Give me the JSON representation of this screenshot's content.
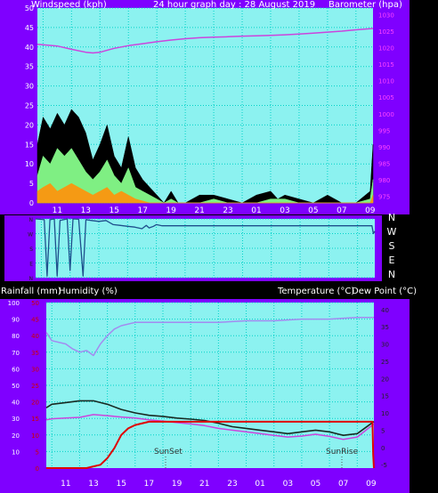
{
  "colors": {
    "frame": "#7f00ff",
    "plot_bg": "#8cf2f0",
    "grid": "#00d2c8",
    "gust": "#000000",
    "speed": "#7fef83",
    "avg": "#f59a14",
    "barometer": "#cc44dd",
    "direction": "#1e4f8c",
    "humidity": "#a38bf0",
    "temperature": "#182a22",
    "dewpoint": "#cc44dd",
    "rainfall": "#e00000",
    "axis_text": "#ffffff",
    "right_axis_text": "#ff44ff",
    "rain_axis_text": "#cc0000"
  },
  "header": {
    "windspeed_label": "Windspeed (kph)",
    "title": "24 hour graph day : 28 August 2019",
    "barometer_label": "Barometer (hpa)"
  },
  "lower_header": {
    "rainfall_label": "Rainfall (mm)",
    "humidity_label": "Humidity (%)",
    "temperature_label": "Temperature (°C)",
    "dewpoint_label": "Dew Point (°C)"
  },
  "compass": [
    "N",
    "W",
    "S",
    "E",
    "N"
  ],
  "time_ticks": [
    "11",
    "13",
    "15",
    "17",
    "19",
    "21",
    "23",
    "01",
    "03",
    "05",
    "07",
    "09"
  ],
  "annotations": {
    "sunset": "SunSet",
    "sunrise": "SunRise"
  },
  "chart_data": [
    {
      "type": "line",
      "name": "wind_barometer",
      "y_left": {
        "label": "Windspeed (kph)",
        "ticks": [
          0,
          5,
          10,
          15,
          20,
          25,
          30,
          35,
          40,
          45,
          50
        ],
        "lim": [
          0,
          50
        ]
      },
      "y_right": {
        "label": "Barometer (hpa)",
        "ticks": [
          975,
          980,
          985,
          990,
          995,
          1000,
          1005,
          1010,
          1015,
          1020,
          1025,
          1030
        ],
        "lim": [
          973,
          1032
        ]
      },
      "series": [
        {
          "name": "gust",
          "points": [
            [
              9.6,
              15
            ],
            [
              10,
              22
            ],
            [
              10.5,
              19
            ],
            [
              11,
              23
            ],
            [
              11.5,
              20
            ],
            [
              12,
              24
            ],
            [
              12.5,
              22
            ],
            [
              13,
              18
            ],
            [
              13.5,
              11
            ],
            [
              14,
              15
            ],
            [
              14.5,
              20
            ],
            [
              15,
              12
            ],
            [
              15.5,
              9
            ],
            [
              16,
              17
            ],
            [
              16.5,
              9
            ],
            [
              17,
              6
            ],
            [
              17.5,
              4
            ],
            [
              18,
              2
            ],
            [
              18.5,
              0
            ],
            [
              19,
              3
            ],
            [
              19.5,
              0
            ],
            [
              20,
              0
            ],
            [
              21,
              2
            ],
            [
              22,
              2
            ],
            [
              23,
              1
            ],
            [
              24,
              0
            ],
            [
              25,
              2
            ],
            [
              26,
              3
            ],
            [
              26.5,
              1
            ],
            [
              27,
              2
            ],
            [
              28,
              1
            ],
            [
              29,
              0
            ],
            [
              30,
              2
            ],
            [
              31,
              0
            ],
            [
              32,
              0
            ],
            [
              33,
              3
            ],
            [
              33.2,
              15
            ]
          ]
        },
        {
          "name": "speed",
          "points": [
            [
              9.6,
              7
            ],
            [
              10,
              12
            ],
            [
              10.5,
              10
            ],
            [
              11,
              14
            ],
            [
              11.5,
              12
            ],
            [
              12,
              14
            ],
            [
              12.5,
              11
            ],
            [
              13,
              8
            ],
            [
              13.5,
              6
            ],
            [
              14,
              8
            ],
            [
              14.5,
              11
            ],
            [
              15,
              7
            ],
            [
              15.5,
              5
            ],
            [
              16,
              9
            ],
            [
              16.5,
              4
            ],
            [
              17,
              3
            ],
            [
              17.5,
              2
            ],
            [
              18,
              1
            ],
            [
              18.5,
              0
            ],
            [
              19,
              1
            ],
            [
              19.5,
              0
            ],
            [
              20,
              0
            ],
            [
              21,
              0
            ],
            [
              22,
              1
            ],
            [
              23,
              0
            ],
            [
              24,
              0
            ],
            [
              25,
              0
            ],
            [
              26,
              1
            ],
            [
              27,
              1
            ],
            [
              28,
              0
            ],
            [
              29,
              0
            ],
            [
              30,
              0
            ],
            [
              31,
              0
            ],
            [
              32,
              0
            ],
            [
              33,
              1
            ],
            [
              33.2,
              6
            ]
          ]
        },
        {
          "name": "average",
          "points": [
            [
              9.6,
              3
            ],
            [
              10,
              4
            ],
            [
              10.5,
              5
            ],
            [
              11,
              3
            ],
            [
              11.5,
              4
            ],
            [
              12,
              5
            ],
            [
              12.5,
              4
            ],
            [
              13,
              3
            ],
            [
              13.5,
              2
            ],
            [
              14,
              3
            ],
            [
              14.5,
              4
            ],
            [
              15,
              2
            ],
            [
              15.5,
              3
            ],
            [
              16,
              2
            ],
            [
              16.5,
              1
            ],
            [
              17,
              0.5
            ],
            [
              17.5,
              0
            ],
            [
              20,
              0
            ],
            [
              33,
              0
            ],
            [
              33.2,
              2
            ]
          ]
        },
        {
          "name": "barometer",
          "points": [
            [
              9.6,
              1021
            ],
            [
              11,
              1020.5
            ],
            [
              12,
              1019.5
            ],
            [
              13,
              1018.6
            ],
            [
              13.5,
              1018.4
            ],
            [
              14,
              1018.6
            ],
            [
              15,
              1019.8
            ],
            [
              16,
              1020.6
            ],
            [
              17,
              1021.2
            ],
            [
              18,
              1021.8
            ],
            [
              19,
              1022.3
            ],
            [
              20,
              1022.7
            ],
            [
              21,
              1023
            ],
            [
              22,
              1023.2
            ],
            [
              23,
              1023.3
            ],
            [
              24,
              1023.5
            ],
            [
              25,
              1023.6
            ],
            [
              26,
              1023.7
            ],
            [
              27,
              1023.9
            ],
            [
              28,
              1024.1
            ],
            [
              29,
              1024.4
            ],
            [
              30,
              1024.7
            ],
            [
              31,
              1025
            ],
            [
              32,
              1025.4
            ],
            [
              33.2,
              1025.8
            ]
          ]
        }
      ]
    },
    {
      "type": "line",
      "name": "wind_direction",
      "y": {
        "ticks": [
          "N",
          "W",
          "S",
          "E",
          "N"
        ],
        "lim": [
          0,
          360
        ]
      },
      "series": [
        {
          "name": "direction",
          "points": [
            [
              9.6,
              360
            ],
            [
              10.2,
              355
            ],
            [
              10.4,
              10
            ],
            [
              10.6,
              355
            ],
            [
              10.9,
              360
            ],
            [
              11.1,
              10
            ],
            [
              11.3,
              350
            ],
            [
              11.8,
              360
            ],
            [
              12,
              45
            ],
            [
              12.2,
              360
            ],
            [
              12.6,
              358
            ],
            [
              12.9,
              10
            ],
            [
              13.1,
              355
            ],
            [
              13.5,
              350
            ],
            [
              14,
              345
            ],
            [
              14.5,
              350
            ],
            [
              15,
              325
            ],
            [
              15.5,
              320
            ],
            [
              16,
              315
            ],
            [
              16.5,
              310
            ],
            [
              17,
              300
            ],
            [
              17.3,
              320
            ],
            [
              17.5,
              305
            ],
            [
              17.8,
              315
            ],
            [
              18,
              325
            ],
            [
              18.4,
              318
            ],
            [
              19,
              318
            ],
            [
              24,
              318
            ],
            [
              30,
              318
            ],
            [
              33,
              318
            ],
            [
              33.1,
              270
            ],
            [
              33.2,
              285
            ]
          ]
        }
      ]
    },
    {
      "type": "line",
      "name": "temp_humidity_rain",
      "y_left": {
        "labels": [
          "Rainfall (mm)",
          "Humidity (%)"
        ],
        "humidity_ticks": [
          10,
          20,
          30,
          40,
          50,
          60,
          70,
          80,
          90,
          100
        ],
        "rain_ticks": [
          0,
          5,
          10,
          15,
          20,
          25,
          30,
          35,
          40,
          45,
          50
        ]
      },
      "y_right": {
        "labels": [
          "Temperature (°C)",
          "Dew Point (°C)"
        ],
        "ticks": [
          -5,
          0,
          5,
          10,
          15,
          20,
          25,
          30,
          35,
          40
        ]
      },
      "series": [
        {
          "name": "humidity",
          "points": [
            [
              9.6,
              82
            ],
            [
              10,
              77
            ],
            [
              11,
              75
            ],
            [
              11.5,
              72
            ],
            [
              12,
              70
            ],
            [
              12.5,
              71
            ],
            [
              13,
              68
            ],
            [
              13.5,
              75
            ],
            [
              14,
              80
            ],
            [
              14.5,
              84
            ],
            [
              15,
              86
            ],
            [
              16,
              88
            ],
            [
              17,
              88
            ],
            [
              18,
              88
            ],
            [
              19,
              88
            ],
            [
              20,
              88
            ],
            [
              22,
              88
            ],
            [
              24,
              89
            ],
            [
              26,
              89
            ],
            [
              28,
              90
            ],
            [
              30,
              90
            ],
            [
              32,
              91
            ],
            [
              33.2,
              91
            ]
          ]
        },
        {
          "name": "temperature",
          "points": [
            [
              9.6,
              11.5
            ],
            [
              10,
              12.5
            ],
            [
              11,
              13
            ],
            [
              12,
              13.5
            ],
            [
              13,
              13.5
            ],
            [
              13.5,
              13
            ],
            [
              14,
              12.5
            ],
            [
              15,
              11
            ],
            [
              16,
              10
            ],
            [
              17,
              9.3
            ],
            [
              18,
              9
            ],
            [
              19,
              8.5
            ],
            [
              20,
              8.2
            ],
            [
              21,
              7.8
            ],
            [
              22,
              7
            ],
            [
              23,
              6
            ],
            [
              24,
              5.5
            ],
            [
              25,
              5
            ],
            [
              26,
              4.5
            ],
            [
              27,
              4
            ],
            [
              28,
              4.5
            ],
            [
              29,
              5
            ],
            [
              30,
              4.5
            ],
            [
              31,
              3.5
            ],
            [
              32,
              4
            ],
            [
              33.2,
              7.5
            ]
          ]
        },
        {
          "name": "dewpoint",
          "points": [
            [
              9.6,
              8
            ],
            [
              10,
              8.3
            ],
            [
              11,
              8.5
            ],
            [
              12,
              8.7
            ],
            [
              13,
              9.5
            ],
            [
              14,
              9.2
            ],
            [
              15,
              8.8
            ],
            [
              16,
              8.5
            ],
            [
              17,
              8
            ],
            [
              18,
              7.6
            ],
            [
              19,
              7.2
            ],
            [
              20,
              6.8
            ],
            [
              21,
              6.3
            ],
            [
              22,
              5.5
            ],
            [
              23,
              5
            ],
            [
              24,
              4.5
            ],
            [
              25,
              4
            ],
            [
              26,
              3.5
            ],
            [
              27,
              3
            ],
            [
              28,
              3.3
            ],
            [
              29,
              3.8
            ],
            [
              30,
              3.2
            ],
            [
              31,
              2.3
            ],
            [
              32,
              3
            ],
            [
              33.2,
              6.8
            ]
          ]
        },
        {
          "name": "rainfall",
          "points": [
            [
              9.6,
              0
            ],
            [
              12.5,
              0
            ],
            [
              13,
              0.5
            ],
            [
              13.5,
              1
            ],
            [
              14,
              3
            ],
            [
              14.5,
              6
            ],
            [
              15,
              10
            ],
            [
              15.5,
              12
            ],
            [
              16,
              13
            ],
            [
              17,
              14
            ],
            [
              18,
              14
            ],
            [
              20,
              14
            ],
            [
              22,
              14
            ],
            [
              24,
              14
            ],
            [
              26,
              14
            ],
            [
              28,
              14
            ],
            [
              30,
              14
            ],
            [
              32,
              14
            ],
            [
              33.1,
              14
            ],
            [
              33.15,
              4
            ],
            [
              33.2,
              0
            ]
          ]
        }
      ]
    }
  ]
}
